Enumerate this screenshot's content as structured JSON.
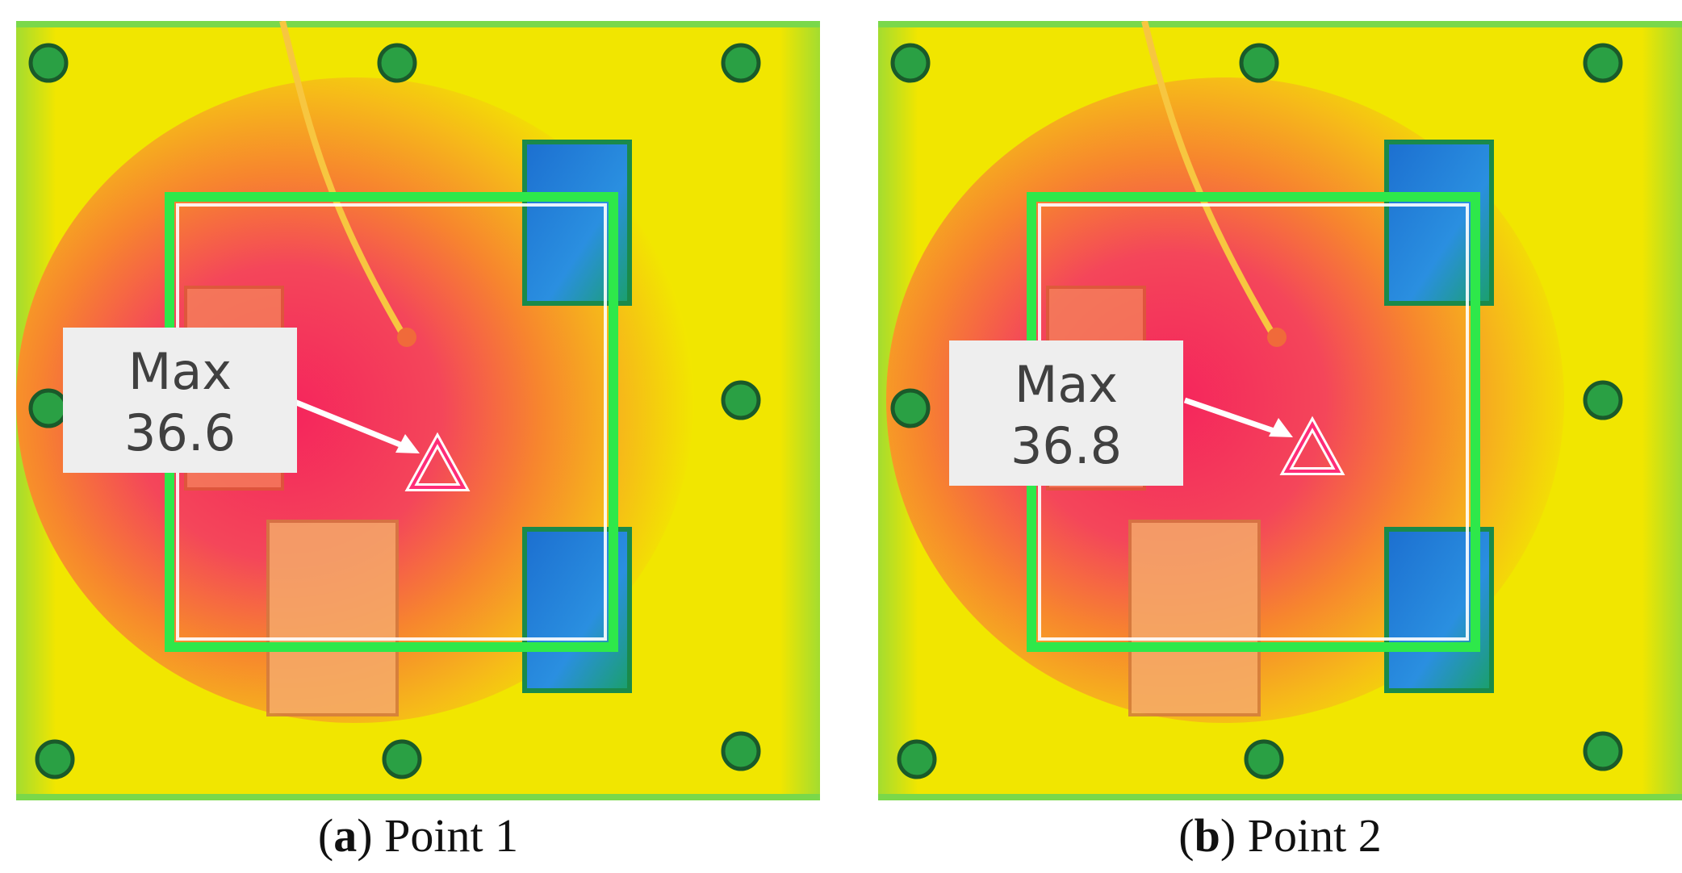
{
  "figure": {
    "panels": [
      {
        "id": "a",
        "letter": "a",
        "caption_text": "Point 1",
        "measurement": {
          "label": "Max",
          "value": "36.6"
        }
      },
      {
        "id": "b",
        "letter": "b",
        "caption_text": "Point 2",
        "measurement": {
          "label": "Max",
          "value": "36.8"
        }
      }
    ]
  },
  "colors": {
    "background_yellow": "#f2e600",
    "hot_red": "#f02a55",
    "warm_orange": "#f6a21e",
    "cool_blue": "#1e7fd6",
    "roi_green": "#2ee84a",
    "marker_pink": "#ff2d78",
    "label_box": "#eeeeee"
  }
}
